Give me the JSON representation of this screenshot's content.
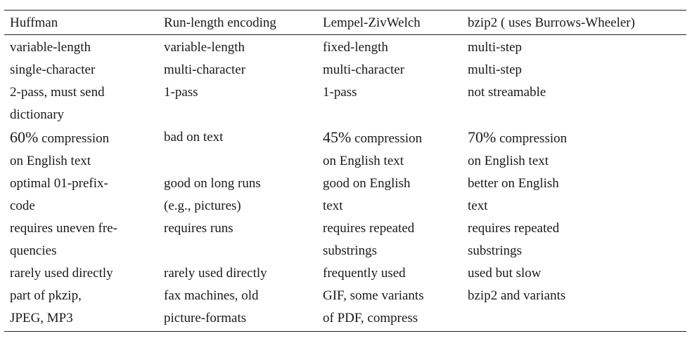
{
  "table": {
    "headers": [
      "Huffman",
      "Run-length encoding",
      "Lempel-ZivWelch",
      "bzip2 ( uses Burrows-Wheeler)"
    ],
    "rows": [
      [
        [
          "variable-length"
        ],
        [
          "variable-length"
        ],
        [
          "fixed-length"
        ],
        [
          "multi-step"
        ]
      ],
      [
        [
          "single-character"
        ],
        [
          "multi-character"
        ],
        [
          "multi-character"
        ],
        [
          "multi-step"
        ]
      ],
      [
        [
          "2-pass, must send",
          "dictionary"
        ],
        [
          "1-pass"
        ],
        [
          "1-pass"
        ],
        [
          "not streamable"
        ]
      ],
      [
        [
          "60% compression",
          "on English text"
        ],
        [
          "bad on text"
        ],
        [
          "45% compression",
          "on English text"
        ],
        [
          "70% compression",
          "on English text"
        ]
      ],
      [
        [
          "optimal 01-prefix-",
          "code"
        ],
        [
          "good on long runs",
          "(e.g., pictures)"
        ],
        [
          "good on English",
          "text"
        ],
        [
          "better on English",
          "text"
        ]
      ],
      [
        [
          "requires uneven fre-",
          "quencies"
        ],
        [
          "requires runs"
        ],
        [
          "requires repeated",
          "substrings"
        ],
        [
          "requires repeated",
          "substrings"
        ]
      ],
      [
        [
          "rarely used directly"
        ],
        [
          "rarely used directly"
        ],
        [
          "frequently used"
        ],
        [
          "used but slow"
        ]
      ],
      [
        [
          "part of pkzip,",
          "JPEG, MP3"
        ],
        [
          "fax machines, old",
          "picture-formats"
        ],
        [
          "GIF, some variants",
          "of PDF, compress"
        ],
        [
          "bzip2 and variants"
        ]
      ]
    ]
  }
}
